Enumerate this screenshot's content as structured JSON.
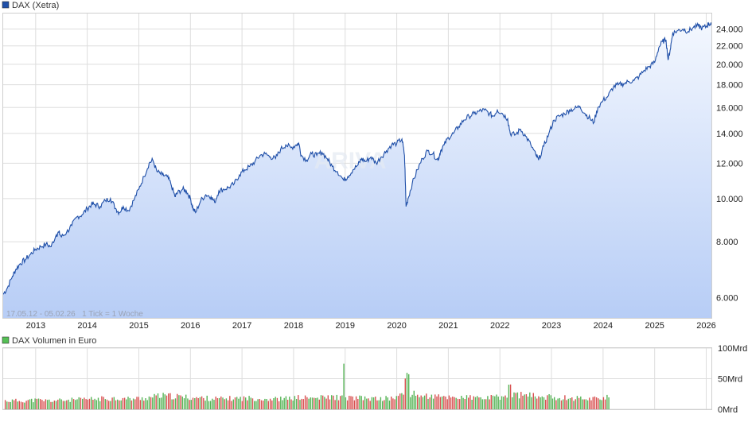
{
  "colors": {
    "price_line": "#1f4fa8",
    "area_top": "#f3f7fe",
    "area_bottom": "#b7cdf6",
    "grid": "#dddddd",
    "legend_price": "#1f4fa8",
    "legend_volume": "#55c055",
    "vol_up": "#55b455",
    "vol_down": "#d85050"
  },
  "price_chart": {
    "legend": "DAX (Xetra)",
    "range_note": "17.05.12 - 05.02.26   1 Tick = 1 Woche",
    "watermark": "ARIVA",
    "y_scale": "log",
    "y_range": [
      5400,
      26000
    ],
    "y_ticks": [
      {
        "value": 6000,
        "label": "6.000"
      },
      {
        "value": 8000,
        "label": "8.000"
      },
      {
        "value": 10000,
        "label": "10.000"
      },
      {
        "value": 12000,
        "label": "12.000"
      },
      {
        "value": 14000,
        "label": "14.000"
      },
      {
        "value": 16000,
        "label": "16.000"
      },
      {
        "value": 18000,
        "label": "18.000"
      },
      {
        "value": 20000,
        "label": "20.000"
      },
      {
        "value": 22000,
        "label": "22.000"
      },
      {
        "value": 24000,
        "label": "24.000"
      }
    ],
    "x_range": [
      2012.37,
      2026.1
    ],
    "x_ticks": [
      {
        "value": 2013,
        "label": "2013"
      },
      {
        "value": 2014,
        "label": "2014"
      },
      {
        "value": 2015,
        "label": "2015"
      },
      {
        "value": 2016,
        "label": "2016"
      },
      {
        "value": 2017,
        "label": "2017"
      },
      {
        "value": 2018,
        "label": "2018"
      },
      {
        "value": 2019,
        "label": "2019"
      },
      {
        "value": 2020,
        "label": "2020"
      },
      {
        "value": 2021,
        "label": "2021"
      },
      {
        "value": 2022,
        "label": "2022"
      },
      {
        "value": 2023,
        "label": "2023"
      },
      {
        "value": 2024,
        "label": "2024"
      },
      {
        "value": 2025,
        "label": "2025"
      },
      {
        "value": 2026,
        "label": "2026"
      }
    ]
  },
  "volume_chart": {
    "legend": "DAX Volumen in Euro",
    "y_range": [
      0,
      100
    ],
    "y_ticks": [
      {
        "value": 0,
        "label": "0Mrd"
      },
      {
        "value": 50,
        "label": "50Mrd"
      },
      {
        "value": 100,
        "label": "100Mrd"
      }
    ]
  },
  "chart_data": [
    {
      "type": "line",
      "series": [
        {
          "name": "DAX (Xetra)",
          "x": [
            2012.37,
            2012.45,
            2012.55,
            2012.62,
            2012.7,
            2012.8,
            2012.9,
            2013.0,
            2013.1,
            2013.2,
            2013.3,
            2013.4,
            2013.45,
            2013.5,
            2013.6,
            2013.7,
            2013.8,
            2013.9,
            2014.0,
            2014.08,
            2014.15,
            2014.25,
            2014.35,
            2014.45,
            2014.55,
            2014.62,
            2014.7,
            2014.8,
            2014.9,
            2015.0,
            2015.1,
            2015.2,
            2015.27,
            2015.35,
            2015.45,
            2015.55,
            2015.62,
            2015.7,
            2015.75,
            2015.85,
            2015.92,
            2016.0,
            2016.05,
            2016.1,
            2016.2,
            2016.3,
            2016.4,
            2016.47,
            2016.55,
            2016.65,
            2016.75,
            2016.85,
            2016.95,
            2017.05,
            2017.15,
            2017.25,
            2017.35,
            2017.45,
            2017.55,
            2017.65,
            2017.75,
            2017.85,
            2017.95,
            2018.05,
            2018.1,
            2018.15,
            2018.25,
            2018.35,
            2018.45,
            2018.55,
            2018.65,
            2018.75,
            2018.85,
            2018.97,
            2019.05,
            2019.15,
            2019.25,
            2019.32,
            2019.4,
            2019.5,
            2019.6,
            2019.7,
            2019.8,
            2019.9,
            2020.0,
            2020.1,
            2020.15,
            2020.18,
            2020.22,
            2020.3,
            2020.4,
            2020.5,
            2020.6,
            2020.7,
            2020.8,
            2020.85,
            2020.92,
            2021.0,
            2021.1,
            2021.2,
            2021.3,
            2021.4,
            2021.5,
            2021.6,
            2021.7,
            2021.8,
            2021.87,
            2021.95,
            2022.05,
            2022.15,
            2022.2,
            2022.3,
            2022.4,
            2022.5,
            2022.6,
            2022.7,
            2022.75,
            2022.85,
            2022.95,
            2023.05,
            2023.15,
            2023.25,
            2023.35,
            2023.45,
            2023.55,
            2023.65,
            2023.75,
            2023.82,
            2023.9,
            2024.0,
            2024.1,
            2024.2,
            2024.3,
            2024.4,
            2024.5,
            2024.6,
            2024.7,
            2024.8,
            2024.9,
            2025.0,
            2025.08,
            2025.15,
            2025.22,
            2025.26,
            2025.3,
            2025.35,
            2025.45,
            2025.55,
            2025.65,
            2025.75,
            2025.85,
            2025.92,
            2026.0,
            2026.05,
            2026.1
          ],
          "y": [
            6100,
            6300,
            6700,
            6950,
            7150,
            7300,
            7500,
            7700,
            7800,
            7900,
            7800,
            8300,
            8400,
            8200,
            8400,
            8700,
            9100,
            9200,
            9500,
            9700,
            9700,
            9600,
            9900,
            10000,
            9500,
            9300,
            9600,
            9400,
            9900,
            10500,
            11200,
            12000,
            12200,
            11500,
            11300,
            11200,
            10800,
            10100,
            10300,
            10500,
            10400,
            10000,
            9500,
            9300,
            9900,
            10200,
            10100,
            9800,
            10400,
            10500,
            10600,
            10800,
            11300,
            11600,
            11800,
            12100,
            12500,
            12600,
            12400,
            12300,
            12900,
            13200,
            13000,
            13200,
            13300,
            12500,
            12200,
            12600,
            12500,
            12700,
            12300,
            11800,
            11500,
            11000,
            11200,
            11600,
            11900,
            12300,
            12100,
            12400,
            12000,
            12400,
            12800,
            13200,
            13300,
            13600,
            12500,
            9600,
            10000,
            10800,
            11600,
            12300,
            12800,
            12600,
            12200,
            12800,
            13200,
            13700,
            14000,
            14500,
            15000,
            15300,
            15500,
            15700,
            15800,
            15500,
            15300,
            15800,
            15500,
            15100,
            14000,
            13900,
            14300,
            13800,
            13200,
            12500,
            12200,
            13100,
            14000,
            15000,
            15300,
            15500,
            15800,
            15900,
            16100,
            15500,
            15100,
            14800,
            16000,
            16600,
            17000,
            17800,
            18000,
            18100,
            18300,
            18400,
            18800,
            19400,
            19800,
            20200,
            21800,
            22500,
            22700,
            20500,
            21500,
            23500,
            23800,
            24000,
            23700,
            24200,
            24400,
            24100,
            24300,
            24700,
            24500
          ]
        }
      ]
    },
    {
      "type": "bar",
      "series": [
        {
          "name": "DAX Volumen in Euro",
          "x": [
            2012.4,
            2012.7,
            2013.0,
            2013.3,
            2013.6,
            2013.9,
            2014.2,
            2014.5,
            2014.8,
            2015.1,
            2015.4,
            2015.7,
            2016.0,
            2016.3,
            2016.6,
            2016.9,
            2017.2,
            2017.5,
            2017.8,
            2018.1,
            2018.4,
            2018.7,
            2019.0,
            2019.3,
            2019.6,
            2019.9,
            2020.2,
            2020.5,
            2020.8,
            2021.1,
            2021.4,
            2021.7,
            2022.0,
            2022.3,
            2022.6,
            2022.9,
            2023.2,
            2023.5,
            2023.8,
            2024.1
          ],
          "values": [
            14,
            14,
            15,
            14,
            15,
            16,
            17,
            18,
            17,
            18,
            22,
            21,
            19,
            18,
            17,
            18,
            18,
            17,
            17,
            19,
            18,
            20,
            19,
            18,
            17,
            18,
            26,
            22,
            20,
            20,
            19,
            18,
            20,
            24,
            22,
            20,
            19,
            18,
            18,
            20
          ]
        }
      ]
    }
  ]
}
